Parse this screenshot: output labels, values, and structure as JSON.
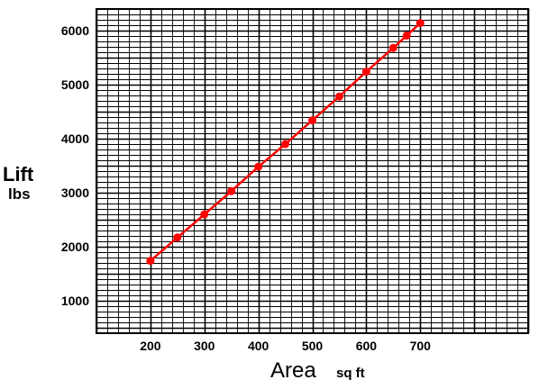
{
  "chart_data": {
    "type": "line",
    "title": "",
    "xlabel": "Area",
    "xlabel_unit": "sq ft",
    "ylabel": "Lift",
    "ylabel_unit": "lbs",
    "x_ticks": [
      "200",
      "300",
      "400",
      "500",
      "600",
      "700"
    ],
    "y_ticks": [
      "1000",
      "2000",
      "3000",
      "4000",
      "5000",
      "6000"
    ],
    "xlim": [
      100,
      900
    ],
    "ylim": [
      400,
      6400
    ],
    "grid": true,
    "series_color": "#ff0000",
    "grid_color": "#000000",
    "series": [
      {
        "x": [
          200,
          250,
          300,
          350,
          400,
          450,
          500,
          550,
          600,
          650,
          675,
          700
        ],
        "y": [
          1740,
          2170,
          2600,
          3030,
          3480,
          3900,
          4340,
          4780,
          5240,
          5680,
          5910,
          6140
        ]
      }
    ]
  }
}
